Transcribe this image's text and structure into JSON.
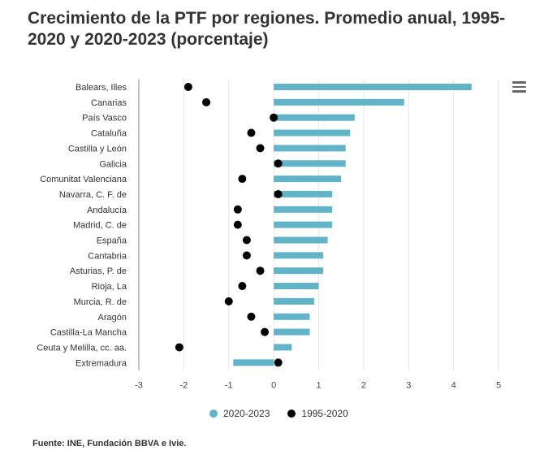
{
  "title": "Crecimiento de la PTF por regiones. Promedio anual, 1995-2020 y 2020-2023 (porcentaje)",
  "source": "Fuente: INE, Fundación BBVA e Ivie.",
  "menu_icon": "hamburger-menu-icon",
  "colors": {
    "bar": "#61b4c7",
    "dot": "#000000",
    "grid": "#e6e6e6",
    "axis": "#888888"
  },
  "chart_data": {
    "type": "bar",
    "orientation": "horizontal",
    "categories": [
      "Balears, Illes",
      "Canarias",
      "País Vasco",
      "Cataluña",
      "Castilla y León",
      "Galicia",
      "Comunitat Valenciana",
      "Navarra, C. F. de",
      "Andalucía",
      "Madrid, C. de",
      "España",
      "Cantabria",
      "Asturias, P. de",
      "Rioja, La",
      "Murcia, R. de",
      "Aragón",
      "Castilla-La Mancha",
      "Ceuta y Melilla, cc. aa.",
      "Extremadura"
    ],
    "series": [
      {
        "name": "2020-2023",
        "kind": "bar",
        "values": [
          4.4,
          2.9,
          1.8,
          1.7,
          1.6,
          1.6,
          1.5,
          1.3,
          1.3,
          1.3,
          1.2,
          1.1,
          1.1,
          1.0,
          0.9,
          0.8,
          0.8,
          0.4,
          -0.9
        ]
      },
      {
        "name": "1995-2020",
        "kind": "dot",
        "values": [
          -1.9,
          -1.5,
          0.0,
          -0.5,
          -0.3,
          0.1,
          -0.7,
          0.1,
          -0.8,
          -0.8,
          -0.6,
          -0.6,
          -0.3,
          -0.7,
          -1.0,
          -0.5,
          -0.2,
          -2.1,
          0.1
        ]
      }
    ],
    "xlim": [
      -3,
      5
    ],
    "xticks": [
      "-3",
      "-2",
      "-1",
      "0",
      "1",
      "2",
      "3",
      "4",
      "5"
    ],
    "xlabel": "",
    "ylabel": "",
    "grid": true,
    "legend_position": "bottom"
  }
}
